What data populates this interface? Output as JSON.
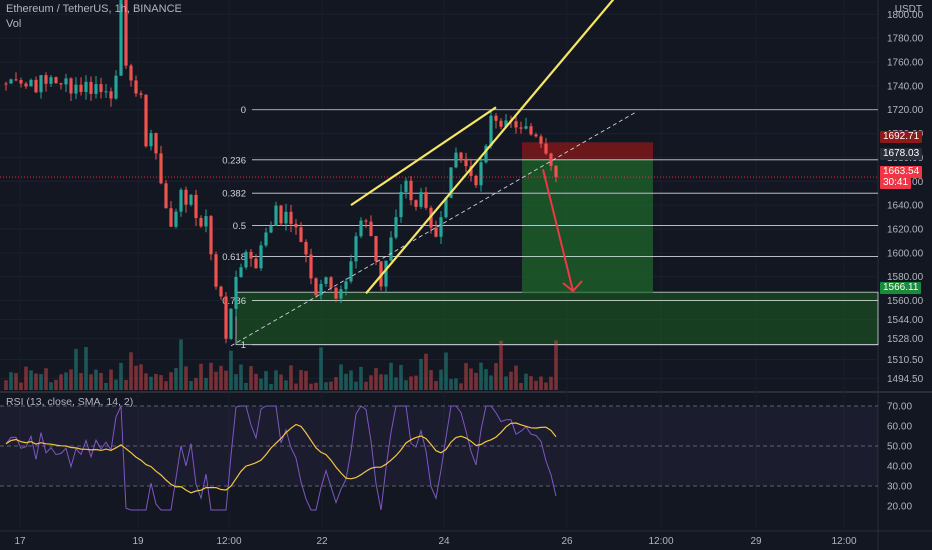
{
  "header": {
    "symbol_line": "Ethereum / TetherUS, 1h, BINANCE",
    "vol_label": "Vol",
    "currency": "USDT"
  },
  "rsi": {
    "label": "RSI (13, close, SMA, 14, 2)"
  },
  "colors": {
    "background": "#131722",
    "up": "#26a69a",
    "down": "#ef5350",
    "trendline": "#f5e663",
    "rsi_line": "#7e57c2",
    "rsi_ma": "#f5c542",
    "fib_line": "#d1d4dc",
    "demand_zone": "#1b5e20",
    "short_profit": "#1e6b2a",
    "short_stop": "#8b1a1a"
  },
  "price_axis": {
    "ticks": [
      "1800.00",
      "1780.00",
      "1760.00",
      "1740.00",
      "1720.00",
      "1700.00",
      "1680.00",
      "1660.00",
      "1640.00",
      "1620.00",
      "1600.00",
      "1580.00",
      "1560.00",
      "1544.00",
      "1528.00",
      "1510.50",
      "1494.50"
    ],
    "partial_top_tick": "1800.00"
  },
  "rsi_axis": {
    "ticks": [
      "70.00",
      "60.00",
      "50.00",
      "40.00",
      "30.00",
      "20.00"
    ]
  },
  "time_axis": {
    "ticks": [
      "17",
      "19",
      "12:00",
      "22",
      "24",
      "26",
      "12:00",
      "29",
      "12:00"
    ]
  },
  "price_tags": {
    "stop": "1692.71",
    "entry": "1678.03",
    "last": "1663.54",
    "countdown": "30:41",
    "target": "1566.11"
  },
  "fib_levels": [
    {
      "label": "0",
      "price": 1720
    },
    {
      "label": "0.236",
      "price": 1678
    },
    {
      "label": "0.382",
      "price": 1650
    },
    {
      "label": "0.5",
      "price": 1623
    },
    {
      "label": "0.618",
      "price": 1597
    },
    {
      "label": "0.786",
      "price": 1560
    },
    {
      "label": "1",
      "price": 1523
    }
  ],
  "chart_data": {
    "type": "candlestick",
    "title": "Ethereum / TetherUS, 1h, BINANCE",
    "y_unit": "USDT",
    "ylim": [
      1485,
      1812
    ],
    "rsi_ylim": [
      12,
      75
    ],
    "series_close_path": [
      [
        1,
        1742
      ],
      [
        3,
        1748
      ],
      [
        5,
        1740
      ],
      [
        6,
        1745
      ],
      [
        7,
        1738
      ],
      [
        8,
        1746
      ],
      [
        9,
        1741
      ],
      [
        10,
        1748
      ],
      [
        11,
        1744
      ],
      [
        12,
        1739
      ],
      [
        13,
        1745
      ],
      [
        14,
        1737
      ],
      [
        15,
        1741
      ],
      [
        16,
        1737
      ],
      [
        17,
        1742
      ],
      [
        18,
        1736
      ],
      [
        19,
        1741
      ],
      [
        20,
        1735
      ],
      [
        21,
        1738
      ],
      [
        22,
        1733
      ],
      [
        23,
        1745
      ],
      [
        24,
        1810
      ],
      [
        25,
        1760
      ],
      [
        26,
        1745
      ],
      [
        27,
        1730
      ],
      [
        28,
        1735
      ],
      [
        29,
        1690
      ],
      [
        30,
        1700
      ],
      [
        31,
        1682
      ],
      [
        32,
        1660
      ],
      [
        33,
        1640
      ],
      [
        34,
        1618
      ],
      [
        35,
        1635
      ],
      [
        36,
        1655
      ],
      [
        37,
        1640
      ],
      [
        38,
        1650
      ],
      [
        39,
        1632
      ],
      [
        40,
        1620
      ],
      [
        41,
        1632
      ],
      [
        42,
        1600
      ],
      [
        43,
        1575
      ],
      [
        44,
        1560
      ],
      [
        45,
        1530
      ],
      [
        46,
        1550
      ],
      [
        47,
        1580
      ],
      [
        48,
        1590
      ],
      [
        49,
        1600
      ],
      [
        50,
        1596
      ],
      [
        51,
        1585
      ],
      [
        52,
        1605
      ],
      [
        53,
        1620
      ],
      [
        54,
        1625
      ],
      [
        55,
        1640
      ],
      [
        56,
        1628
      ],
      [
        57,
        1638
      ],
      [
        58,
        1625
      ],
      [
        59,
        1620
      ],
      [
        60,
        1608
      ],
      [
        61,
        1595
      ],
      [
        62,
        1580
      ],
      [
        63,
        1565
      ],
      [
        64,
        1574
      ],
      [
        65,
        1580
      ],
      [
        66,
        1568
      ],
      [
        67,
        1562
      ],
      [
        68,
        1570
      ],
      [
        69,
        1578
      ],
      [
        70,
        1595
      ],
      [
        71,
        1612
      ],
      [
        72,
        1630
      ],
      [
        73,
        1628
      ],
      [
        74,
        1612
      ],
      [
        75,
        1590
      ],
      [
        76,
        1568
      ],
      [
        77,
        1590
      ],
      [
        78,
        1610
      ],
      [
        79,
        1628
      ],
      [
        80,
        1650
      ],
      [
        81,
        1660
      ],
      [
        82,
        1648
      ],
      [
        83,
        1640
      ],
      [
        84,
        1652
      ],
      [
        85,
        1640
      ],
      [
        86,
        1622
      ],
      [
        87,
        1612
      ],
      [
        88,
        1628
      ],
      [
        89,
        1648
      ],
      [
        90,
        1668
      ],
      [
        91,
        1688
      ],
      [
        92,
        1680
      ],
      [
        93,
        1672
      ],
      [
        94,
        1665
      ],
      [
        95,
        1660
      ],
      [
        96,
        1672
      ],
      [
        97,
        1690
      ],
      [
        98,
        1712
      ],
      [
        99,
        1710
      ],
      [
        100,
        1706
      ],
      [
        101,
        1714
      ],
      [
        102,
        1708
      ],
      [
        103,
        1702
      ],
      [
        104,
        1706
      ],
      [
        105,
        1710
      ],
      [
        106,
        1702
      ],
      [
        107,
        1696
      ],
      [
        108,
        1690
      ],
      [
        109,
        1682
      ],
      [
        110,
        1670
      ],
      [
        111,
        1663.54
      ]
    ],
    "trendlines": [
      {
        "name": "rising wedge upper",
        "from": [
          70,
          1640
        ],
        "to": [
          99,
          1722
        ]
      },
      {
        "name": "rising wedge lower",
        "from": [
          73,
          1566
        ],
        "to": [
          130,
          1850
        ]
      },
      {
        "name": "channel support",
        "from": [
          46,
          1522
        ],
        "to": [
          127,
          1718
        ]
      }
    ],
    "demand_zone": {
      "from_price": 1523,
      "to_price": 1567
    },
    "short_position": {
      "entry": 1678.03,
      "stop": 1692.71,
      "target": 1566.11
    },
    "projection_arrow": {
      "from": [
        108,
        1670
      ],
      "to": [
        114,
        1568
      ]
    }
  }
}
